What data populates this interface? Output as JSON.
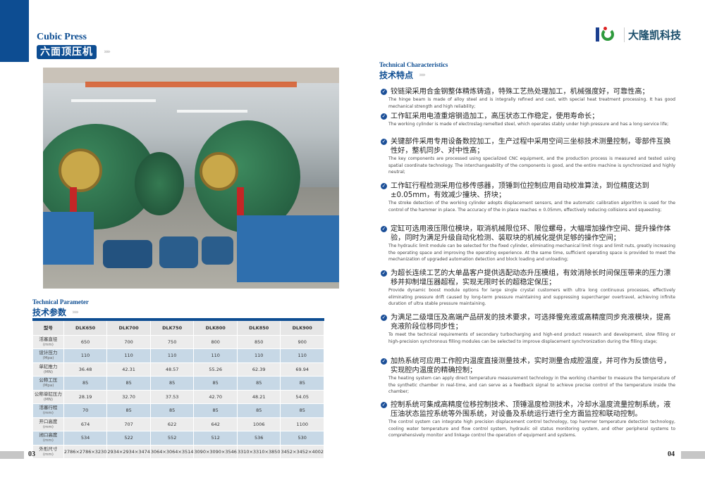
{
  "header": {
    "title_en": "Cubic Press",
    "title_cn": "六面顶压机",
    "chevrons": "›››››",
    "logo_text": "大隆凯科技"
  },
  "params": {
    "title_en": "Technical Parameter",
    "title_cn": "技术参数",
    "header": [
      "型号",
      "DLK650",
      "DLK700",
      "DLK750",
      "DLK800",
      "DLK850",
      "DLK900"
    ],
    "rows": [
      {
        "label": "活塞直径",
        "unit": "(mm)",
        "values": [
          "650",
          "700",
          "750",
          "800",
          "850",
          "900"
        ]
      },
      {
        "label": "设计压力",
        "unit": "(Mpa)",
        "values": [
          "110",
          "110",
          "110",
          "110",
          "110",
          "110"
        ]
      },
      {
        "label": "单缸推力",
        "unit": "(MN)",
        "values": [
          "36.48",
          "42.31",
          "48.57",
          "55.26",
          "62.39",
          "69.94"
        ]
      },
      {
        "label": "公称工压",
        "unit": "(Mpa)",
        "values": [
          "85",
          "85",
          "85",
          "85",
          "85",
          "85"
        ]
      },
      {
        "label": "公称单缸压力",
        "unit": "(MN)",
        "values": [
          "28.19",
          "32.70",
          "37.53",
          "42.70",
          "48.21",
          "54.05"
        ]
      },
      {
        "label": "活塞行程",
        "unit": "(mm)",
        "values": [
          "70",
          "85",
          "85",
          "85",
          "85",
          "85"
        ]
      },
      {
        "label": "开口高度",
        "unit": "(mm)",
        "values": [
          "674",
          "707",
          "622",
          "642",
          "1006",
          "1100"
        ]
      },
      {
        "label": "闭口高度",
        "unit": "(mm)",
        "values": [
          "534",
          "522",
          "552",
          "512",
          "536",
          "530"
        ]
      },
      {
        "label": "外形尺寸",
        "unit": "(mm)",
        "values": [
          "2786×2786×3230",
          "2934×2934×3474",
          "3064×3064×3514",
          "3090×3090×3546",
          "3310×3310×3850",
          "3452×3452×4002"
        ]
      }
    ]
  },
  "features": {
    "title_en": "Technical Characteristics",
    "title_cn": "技术特点",
    "items": [
      {
        "cn": "铰链梁采用合金钢整体精炼铸造，特殊工艺热处理加工，机械强度好，可靠性高；",
        "en": "The hinge beam is made of alloy steel and is integrally refined and cast, with special heat treatment processing. It has good mechanical strength and high reliability;"
      },
      {
        "cn": "工作缸采用电渣重熔钢造加工，高压状态工作稳定，使用寿命长；",
        "en": "The working cylinder is made of electroslag remelted steel, which operates stably under high pressure and has a long service life;"
      },
      {
        "cn": "关键部件采用专用设备数控加工，生产过程中采用空间三坐标技术测量控制，零部件互换性好，整机同步、对中性高；",
        "en": "The key components are processed using specialized CNC equipment, and the production process is measured and tested using spatial coordinate technology. The interchangeability of the components is good, and the entire machine is synchronized and highly neutral;"
      },
      {
        "cn": "工作缸行程检测采用位移传感器，顶锤到位控制应用自动校准算法，到位精度达到±0.05mm，有效减少撞块、挤块；",
        "en": "The stroke detection of the working cylinder adopts displacement sensors, and the automatic calibration algorithm is used for the control of the hammer in place. The accuracy of the in place reaches ± 0.05mm, effectively reducing collisions and squeezing;"
      },
      {
        "cn": "定缸可选用液压限位模块，取消机械限位环、限位螺母，大幅增加操作空间、提升操作体验，同时为满足升级自动化检测、装取块的机械化提供足够的操作空间；",
        "en": "The hydraulic limit module can be selected for the fixed cylinder, eliminating mechanical limit rings and limit nuts, greatly increasing the operating space and improving the operating experience. At the same time, sufficient operating space is provided to meet the mechanization of upgraded automation detection and block loading and unloading;"
      },
      {
        "cn": "为超长连续工艺的大单晶客户提供选配动态升压模组，有效消除长时间保压带来的压力漂移并抑制增压器超程，实现无限时长的超稳定保压；",
        "en": "Provide dynamic boost module options for large single crystal customers with ultra long continuous processes, effectively eliminating pressure drift caused by long-term pressure maintaining and suppressing supercharger overtravel, achieving infinite duration of ultra stable pressure maintaining."
      },
      {
        "cn": "为满足二级增压及高端产品研发的技术要求，可选择慢充液或高精度同步充液模块，提高充液阶段位移同步性；",
        "en": "To meet the technical requirements of secondary turbocharging and high-end product research and development, slow filling or high-precision synchronous filling modules can be selected to improve displacement synchronization during the filling stage;"
      },
      {
        "cn": "加热系统可应用工作腔内温度直接测量技术，实时测量合成腔温度，并可作为反馈信号，实现腔内温度的精确控制；",
        "en": "The heating system can apply direct temperature measurement technology in the working chamber to measure the temperature of the synthetic chamber in real-time, and can serve as a feedback signal to achieve precise control of the temperature inside the chamber;"
      },
      {
        "cn": "控制系统可集成高精度位移控制技术、顶锤温度检测技术，冷却水温度流量控制系统，液压油状态监控系统等外围系统，对设备及系统运行进行全方面监控和联动控制。",
        "en": "The control system can integrate high precision displacement control technology, top hammer temperature detection technology, cooling water temperature and flow control system, hydraulic oil status monitoring system, and other peripheral systems to comprehensively monitor and linkage control the operation of equipment and systems."
      }
    ]
  },
  "footer": {
    "page_left": "03",
    "page_right": "04"
  },
  "colors": {
    "brand_blue": "#0d4d92",
    "row_blue": "#c7d8e6",
    "row_gray": "#ececec"
  }
}
